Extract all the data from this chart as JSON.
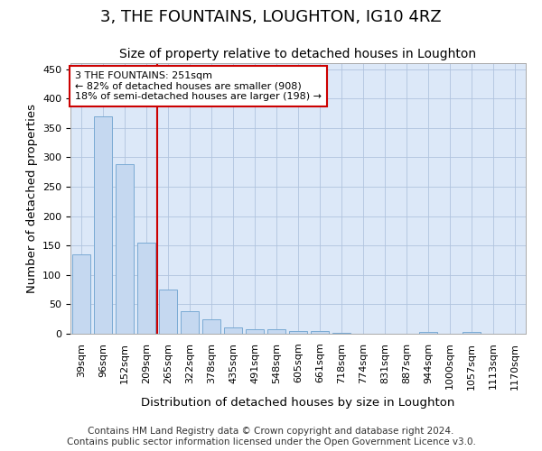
{
  "title": "3, THE FOUNTAINS, LOUGHTON, IG10 4RZ",
  "subtitle": "Size of property relative to detached houses in Loughton",
  "xlabel": "Distribution of detached houses by size in Loughton",
  "ylabel": "Number of detached properties",
  "categories": [
    "39sqm",
    "96sqm",
    "152sqm",
    "209sqm",
    "265sqm",
    "322sqm",
    "378sqm",
    "435sqm",
    "491sqm",
    "548sqm",
    "605sqm",
    "661sqm",
    "718sqm",
    "774sqm",
    "831sqm",
    "887sqm",
    "944sqm",
    "1000sqm",
    "1057sqm",
    "1113sqm",
    "1170sqm"
  ],
  "values": [
    135,
    370,
    288,
    155,
    75,
    38,
    25,
    10,
    8,
    7,
    5,
    5,
    2,
    0,
    0,
    0,
    3,
    0,
    3,
    0,
    0
  ],
  "bar_color": "#c5d8f0",
  "bar_edge_color": "#7aaad4",
  "vline_color": "#cc0000",
  "annotation_text": "3 THE FOUNTAINS: 251sqm\n← 82% of detached houses are smaller (908)\n18% of semi-detached houses are larger (198) →",
  "annotation_box_color": "#ffffff",
  "annotation_box_edge_color": "#cc0000",
  "ylim": [
    0,
    460
  ],
  "yticks": [
    0,
    50,
    100,
    150,
    200,
    250,
    300,
    350,
    400,
    450
  ],
  "footer_line1": "Contains HM Land Registry data © Crown copyright and database right 2024.",
  "footer_line2": "Contains public sector information licensed under the Open Government Licence v3.0.",
  "title_fontsize": 13,
  "subtitle_fontsize": 10,
  "tick_fontsize": 8,
  "label_fontsize": 9.5,
  "annotation_fontsize": 8,
  "footer_fontsize": 7.5,
  "fig_width": 6.0,
  "fig_height": 5.0,
  "dpi": 100,
  "plot_bg_color": "#dce8f8",
  "fig_bg_color": "#ffffff"
}
